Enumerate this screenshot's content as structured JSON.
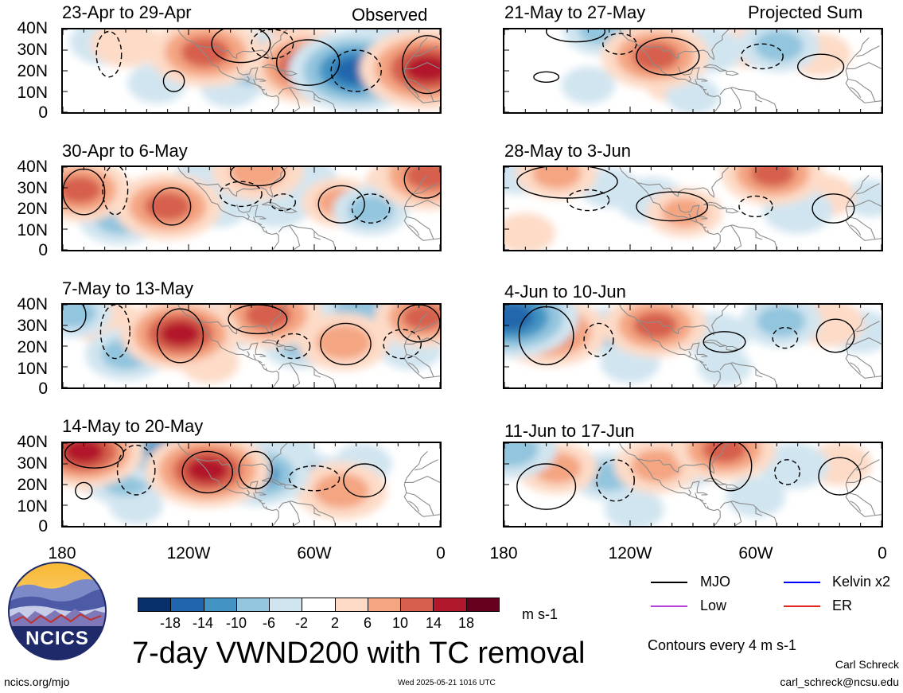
{
  "column_labels": {
    "left": "Observed",
    "right": "Projected Sum"
  },
  "panels": [
    {
      "title": "23-Apr to 29-Apr",
      "blobs": [
        {
          "lon": -112,
          "lat": 29,
          "v": 14
        },
        {
          "lon": -89,
          "lat": 24,
          "v": -12
        },
        {
          "lon": -61,
          "lat": 22,
          "v": 16
        },
        {
          "lon": -40,
          "lat": 20,
          "v": -18
        },
        {
          "lon": -6,
          "lat": 21,
          "v": 18
        },
        {
          "lon": -160,
          "lat": 34,
          "v": -6
        },
        {
          "lon": -150,
          "lat": 33,
          "v": 6
        },
        {
          "lon": -135,
          "lat": 14,
          "v": -4
        },
        {
          "lon": -75,
          "lat": 32,
          "v": 8
        },
        {
          "lon": -100,
          "lat": 12,
          "v": -4
        },
        {
          "lon": -25,
          "lat": 38,
          "v": -6
        }
      ],
      "contours": [
        {
          "lon": -127,
          "lat": 15,
          "rx": 5,
          "ry": 5,
          "d": false
        },
        {
          "lon": -95,
          "lat": 33,
          "rx": 14,
          "ry": 9,
          "d": false
        },
        {
          "lon": -63,
          "lat": 24,
          "rx": 15,
          "ry": 11,
          "d": false
        },
        {
          "lon": -40,
          "lat": 20,
          "rx": 12,
          "ry": 10,
          "d": true
        },
        {
          "lon": -6,
          "lat": 23,
          "rx": 12,
          "ry": 14,
          "d": false
        },
        {
          "lon": -158,
          "lat": 28,
          "rx": 6,
          "ry": 11,
          "d": true
        },
        {
          "lon": -80,
          "lat": 33,
          "rx": 10,
          "ry": 7,
          "d": true
        }
      ]
    },
    {
      "title": "21-May to 27-May",
      "blobs": [
        {
          "lon": -133,
          "lat": 40,
          "v": -8
        },
        {
          "lon": -108,
          "lat": 27,
          "v": 13
        },
        {
          "lon": -83,
          "lat": 30,
          "v": -6
        },
        {
          "lon": -49,
          "lat": 32,
          "v": -8
        },
        {
          "lon": -63,
          "lat": 32,
          "v": 5
        },
        {
          "lon": -140,
          "lat": 13,
          "v": -3
        },
        {
          "lon": -30,
          "lat": 28,
          "v": 5
        },
        {
          "lon": -100,
          "lat": 14,
          "v": 3
        },
        {
          "lon": -90,
          "lat": 8,
          "v": -3
        }
      ],
      "contours": [
        {
          "lon": -146,
          "lat": 39,
          "rx": 14,
          "ry": 5,
          "d": false
        },
        {
          "lon": -102,
          "lat": 27,
          "rx": 15,
          "ry": 9,
          "d": false
        },
        {
          "lon": -160,
          "lat": 17,
          "rx": 6,
          "ry": 2.5,
          "d": false
        },
        {
          "lon": -57,
          "lat": 27,
          "rx": 10,
          "ry": 6,
          "d": true
        },
        {
          "lon": -29,
          "lat": 22,
          "rx": 11,
          "ry": 6,
          "d": false
        },
        {
          "lon": -125,
          "lat": 33,
          "rx": 8,
          "ry": 5,
          "d": true
        }
      ]
    },
    {
      "title": "30-Apr to 6-May",
      "blobs": [
        {
          "lon": -172,
          "lat": 29,
          "v": 12
        },
        {
          "lon": -153,
          "lat": 15,
          "v": -8
        },
        {
          "lon": -130,
          "lat": 21,
          "v": 13
        },
        {
          "lon": -105,
          "lat": 20,
          "v": -3
        },
        {
          "lon": -87,
          "lat": 38,
          "v": 10
        },
        {
          "lon": -78,
          "lat": 22,
          "v": -6
        },
        {
          "lon": -66,
          "lat": 34,
          "v": -6
        },
        {
          "lon": -48,
          "lat": 23,
          "v": 7
        },
        {
          "lon": -33,
          "lat": 19,
          "v": -7
        },
        {
          "lon": -5,
          "lat": 36,
          "v": 14
        },
        {
          "lon": -112,
          "lat": 36,
          "v": -4
        },
        {
          "lon": -20,
          "lat": 33,
          "v": 5
        }
      ],
      "contours": [
        {
          "lon": -170,
          "lat": 28,
          "rx": 10,
          "ry": 11,
          "d": false
        },
        {
          "lon": -128,
          "lat": 21,
          "rx": 9,
          "ry": 9,
          "d": false
        },
        {
          "lon": -87,
          "lat": 37,
          "rx": 13,
          "ry": 6,
          "d": false
        },
        {
          "lon": -47,
          "lat": 22,
          "rx": 11,
          "ry": 9,
          "d": false
        },
        {
          "lon": -33,
          "lat": 20,
          "rx": 9,
          "ry": 7,
          "d": true
        },
        {
          "lon": -7,
          "lat": 34,
          "rx": 10,
          "ry": 9,
          "d": false
        },
        {
          "lon": -155,
          "lat": 29,
          "rx": 6,
          "ry": 12,
          "d": true
        },
        {
          "lon": -95,
          "lat": 27,
          "rx": 10,
          "ry": 6,
          "d": true
        },
        {
          "lon": -75,
          "lat": 23,
          "rx": 6,
          "ry": 4,
          "d": true
        }
      ]
    },
    {
      "title": "28-May to 3-Jun",
      "blobs": [
        {
          "lon": -155,
          "lat": 37,
          "v": 8
        },
        {
          "lon": -174,
          "lat": 38,
          "v": -6
        },
        {
          "lon": -110,
          "lat": 24,
          "v": -6
        },
        {
          "lon": -94,
          "lat": 18,
          "v": 7
        },
        {
          "lon": -52,
          "lat": 37,
          "v": 12
        },
        {
          "lon": -40,
          "lat": 19,
          "v": -6
        },
        {
          "lon": -28,
          "lat": 26,
          "v": 5
        },
        {
          "lon": -170,
          "lat": 8,
          "v": 4
        },
        {
          "lon": -130,
          "lat": 30,
          "v": -4
        },
        {
          "lon": -5,
          "lat": 25,
          "v": -3
        }
      ],
      "contours": [
        {
          "lon": -150,
          "lat": 33,
          "rx": 24,
          "ry": 8,
          "d": false
        },
        {
          "lon": -100,
          "lat": 21,
          "rx": 17,
          "ry": 7,
          "d": false
        },
        {
          "lon": -23,
          "lat": 20,
          "rx": 10,
          "ry": 7,
          "d": false
        },
        {
          "lon": -60,
          "lat": 21,
          "rx": 8,
          "ry": 5,
          "d": true
        },
        {
          "lon": -140,
          "lat": 24,
          "rx": 10,
          "ry": 5,
          "d": true
        }
      ]
    },
    {
      "title": "7-May to 13-May",
      "blobs": [
        {
          "lon": -175,
          "lat": 36,
          "v": -7
        },
        {
          "lon": -150,
          "lat": 16,
          "v": -8
        },
        {
          "lon": -124,
          "lat": 26,
          "v": 15
        },
        {
          "lon": -97,
          "lat": 32,
          "v": -9
        },
        {
          "lon": -82,
          "lat": 35,
          "v": 13
        },
        {
          "lon": -67,
          "lat": 21,
          "v": -7
        },
        {
          "lon": -46,
          "lat": 22,
          "v": 10
        },
        {
          "lon": -38,
          "lat": 37,
          "v": -9
        },
        {
          "lon": -14,
          "lat": 19,
          "v": -5
        },
        {
          "lon": -8,
          "lat": 34,
          "v": 11
        },
        {
          "lon": -110,
          "lat": 12,
          "v": 4
        },
        {
          "lon": -160,
          "lat": 32,
          "v": 6
        }
      ],
      "contours": [
        {
          "lon": -176,
          "lat": 35,
          "rx": 7,
          "ry": 8,
          "d": false
        },
        {
          "lon": -124,
          "lat": 25,
          "rx": 11,
          "ry": 13,
          "d": false
        },
        {
          "lon": -87,
          "lat": 33,
          "rx": 14,
          "ry": 7,
          "d": false
        },
        {
          "lon": -45,
          "lat": 21,
          "rx": 12,
          "ry": 10,
          "d": false
        },
        {
          "lon": -10,
          "lat": 31,
          "rx": 10,
          "ry": 9,
          "d": false
        },
        {
          "lon": -155,
          "lat": 27,
          "rx": 7,
          "ry": 13,
          "d": true
        },
        {
          "lon": -70,
          "lat": 20,
          "rx": 8,
          "ry": 6,
          "d": true
        },
        {
          "lon": -18,
          "lat": 21,
          "rx": 9,
          "ry": 7,
          "d": true
        }
      ]
    },
    {
      "title": "4-Jun to 10-Jun",
      "blobs": [
        {
          "lon": -177,
          "lat": 34,
          "v": -18
        },
        {
          "lon": -158,
          "lat": 27,
          "v": 14
        },
        {
          "lon": -130,
          "lat": 27,
          "v": -7
        },
        {
          "lon": -108,
          "lat": 30,
          "v": 12
        },
        {
          "lon": -80,
          "lat": 25,
          "v": -6
        },
        {
          "lon": -48,
          "lat": 32,
          "v": -8
        },
        {
          "lon": -25,
          "lat": 31,
          "v": 6
        },
        {
          "lon": -10,
          "lat": 27,
          "v": -5
        },
        {
          "lon": -120,
          "lat": 12,
          "v": -4
        },
        {
          "lon": -75,
          "lat": 10,
          "v": -3
        }
      ],
      "contours": [
        {
          "lon": -160,
          "lat": 25,
          "rx": 13,
          "ry": 14,
          "d": false
        },
        {
          "lon": -135,
          "lat": 23,
          "rx": 7,
          "ry": 8,
          "d": true
        },
        {
          "lon": -75,
          "lat": 22,
          "rx": 10,
          "ry": 5,
          "d": false
        },
        {
          "lon": -46,
          "lat": 24,
          "rx": 6,
          "ry": 5,
          "d": true
        },
        {
          "lon": -22,
          "lat": 25,
          "rx": 9,
          "ry": 8,
          "d": false
        }
      ]
    },
    {
      "title": "14-May to 20-May",
      "blobs": [
        {
          "lon": -170,
          "lat": 36,
          "v": 15
        },
        {
          "lon": -150,
          "lat": 22,
          "v": -8
        },
        {
          "lon": -130,
          "lat": 36,
          "v": -13
        },
        {
          "lon": -111,
          "lat": 27,
          "v": 16
        },
        {
          "lon": -87,
          "lat": 25,
          "v": -12
        },
        {
          "lon": -61,
          "lat": 23,
          "v": -7
        },
        {
          "lon": -47,
          "lat": 17,
          "v": 10
        },
        {
          "lon": -37,
          "lat": 30,
          "v": -4
        },
        {
          "lon": -145,
          "lat": 10,
          "v": -3
        },
        {
          "lon": -160,
          "lat": 25,
          "v": 6
        },
        {
          "lon": -75,
          "lat": 34,
          "v": -6
        }
      ],
      "contours": [
        {
          "lon": -165,
          "lat": 35,
          "rx": 14,
          "ry": 7,
          "d": false
        },
        {
          "lon": -111,
          "lat": 26,
          "rx": 12,
          "ry": 10,
          "d": false
        },
        {
          "lon": -88,
          "lat": 27,
          "rx": 8,
          "ry": 9,
          "d": false
        },
        {
          "lon": -36,
          "lat": 22,
          "rx": 10,
          "ry": 8,
          "d": false
        },
        {
          "lon": -170,
          "lat": 17,
          "rx": 4,
          "ry": 4,
          "d": false
        },
        {
          "lon": -145,
          "lat": 27,
          "rx": 9,
          "ry": 12,
          "d": true
        },
        {
          "lon": -60,
          "lat": 23,
          "rx": 12,
          "ry": 6,
          "d": true
        }
      ]
    },
    {
      "title": "11-Jun to 17-Jun",
      "blobs": [
        {
          "lon": -177,
          "lat": 37,
          "v": -10
        },
        {
          "lon": -155,
          "lat": 28,
          "v": 8
        },
        {
          "lon": -130,
          "lat": 24,
          "v": -7
        },
        {
          "lon": -107,
          "lat": 29,
          "v": 9
        },
        {
          "lon": -75,
          "lat": 37,
          "v": 12
        },
        {
          "lon": -42,
          "lat": 29,
          "v": -6
        },
        {
          "lon": -20,
          "lat": 30,
          "v": 5
        },
        {
          "lon": -60,
          "lat": 14,
          "v": -4
        },
        {
          "lon": -118,
          "lat": 8,
          "v": -4
        },
        {
          "lon": -90,
          "lat": 28,
          "v": -3
        }
      ],
      "contours": [
        {
          "lon": -160,
          "lat": 19,
          "rx": 14,
          "ry": 11,
          "d": false
        },
        {
          "lon": -127,
          "lat": 22,
          "rx": 9,
          "ry": 10,
          "d": true
        },
        {
          "lon": -72,
          "lat": 29,
          "rx": 10,
          "ry": 12,
          "d": false
        },
        {
          "lon": -45,
          "lat": 26,
          "rx": 6,
          "ry": 6,
          "d": true
        },
        {
          "lon": -20,
          "lat": 24,
          "rx": 10,
          "ry": 9,
          "d": false
        }
      ]
    }
  ],
  "y_ticks": [
    "40N",
    "30N",
    "20N",
    "10N",
    "0"
  ],
  "x_ticks": [
    "180",
    "120W",
    "60W",
    "0"
  ],
  "colorbar": {
    "colors": [
      "#08306b",
      "#2166ac",
      "#4393c3",
      "#92c5de",
      "#d1e5f0",
      "#ffffff",
      "#fddbc7",
      "#f4a582",
      "#d6604d",
      "#b2182b",
      "#67001f"
    ],
    "labels": [
      "-18",
      "-14",
      "-10",
      "-6",
      "-2",
      "2",
      "6",
      "10",
      "14",
      "18"
    ],
    "units": "m s-1"
  },
  "legend": [
    {
      "label": "MJO",
      "color": "#000000"
    },
    {
      "label": "Kelvin x2",
      "color": "#0000ff"
    },
    {
      "label": "Low",
      "color": "#b43fd9"
    },
    {
      "label": "ER",
      "color": "#e0271d"
    }
  ],
  "logo_text": "NCICS",
  "main_title": "7-day VWND200 with TC removal",
  "contour_note": "Contours every 4 m s-1",
  "author": "Carl Schreck",
  "email": "carl_schreck@ncsu.edu",
  "url": "ncics.org/mjo",
  "timestamp": "Wed 2025-05-21 1016 UTC"
}
